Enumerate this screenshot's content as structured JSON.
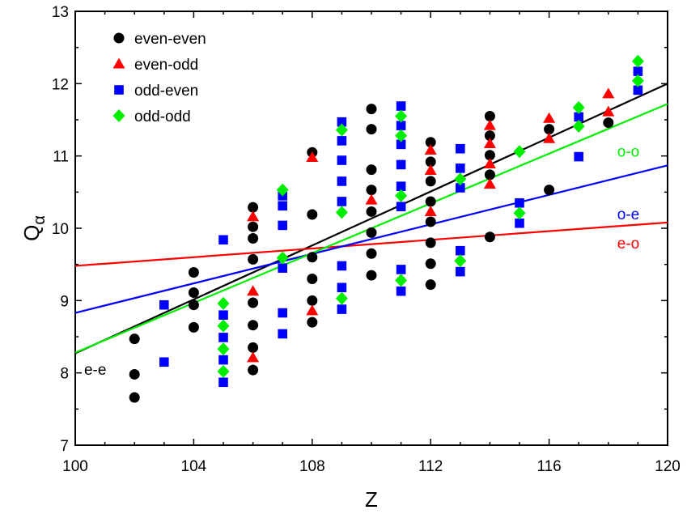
{
  "chart_data": {
    "type": "scatter",
    "title": "",
    "xlabel": "Z",
    "ylabel": "Q",
    "ylabel_sub": "α",
    "xlim": [
      100,
      120
    ],
    "ylim": [
      7,
      13
    ],
    "xticks": [
      100,
      104,
      108,
      112,
      116,
      120
    ],
    "yticks": [
      7,
      8,
      9,
      10,
      11,
      12,
      13
    ],
    "grid": false,
    "legend_position": "top-left",
    "series": [
      {
        "name": "even-even",
        "marker": "circle",
        "color": "#000000",
        "points": [
          [
            102,
            8.47
          ],
          [
            102,
            7.98
          ],
          [
            102,
            7.66
          ],
          [
            104,
            9.39
          ],
          [
            104,
            9.11
          ],
          [
            104,
            8.94
          ],
          [
            104,
            8.63
          ],
          [
            106,
            10.29
          ],
          [
            106,
            10.02
          ],
          [
            106,
            9.86
          ],
          [
            106,
            9.57
          ],
          [
            106,
            8.97
          ],
          [
            106,
            8.66
          ],
          [
            106,
            8.35
          ],
          [
            106,
            8.04
          ],
          [
            108,
            11.05
          ],
          [
            108,
            10.19
          ],
          [
            108,
            9.6
          ],
          [
            108,
            9.3
          ],
          [
            108,
            9.0
          ],
          [
            108,
            8.7
          ],
          [
            110,
            11.65
          ],
          [
            110,
            11.37
          ],
          [
            110,
            10.81
          ],
          [
            110,
            10.53
          ],
          [
            110,
            10.23
          ],
          [
            110,
            9.94
          ],
          [
            110,
            9.65
          ],
          [
            110,
            9.35
          ],
          [
            112,
            11.19
          ],
          [
            112,
            10.92
          ],
          [
            112,
            10.65
          ],
          [
            112,
            10.37
          ],
          [
            112,
            10.09
          ],
          [
            112,
            9.8
          ],
          [
            112,
            9.51
          ],
          [
            112,
            9.22
          ],
          [
            114,
            11.55
          ],
          [
            114,
            11.28
          ],
          [
            114,
            11.01
          ],
          [
            114,
            10.74
          ],
          [
            114,
            9.88
          ],
          [
            116,
            11.37
          ],
          [
            116,
            10.53
          ],
          [
            118,
            11.46
          ]
        ]
      },
      {
        "name": "even-odd",
        "marker": "triangle",
        "color": "#ff0000",
        "points": [
          [
            106,
            10.16
          ],
          [
            106,
            9.13
          ],
          [
            106,
            8.21
          ],
          [
            108,
            10.98
          ],
          [
            108,
            8.86
          ],
          [
            110,
            10.39
          ],
          [
            112,
            11.08
          ],
          [
            112,
            10.8
          ],
          [
            112,
            10.23
          ],
          [
            114,
            11.42
          ],
          [
            114,
            11.17
          ],
          [
            114,
            10.89
          ],
          [
            114,
            10.61
          ],
          [
            116,
            11.52
          ],
          [
            116,
            11.24
          ],
          [
            118,
            11.86
          ],
          [
            118,
            11.61
          ]
        ]
      },
      {
        "name": "odd-even",
        "marker": "square",
        "color": "#0000ff",
        "points": [
          [
            103,
            8.94
          ],
          [
            103,
            8.15
          ],
          [
            105,
            9.84
          ],
          [
            105,
            8.8
          ],
          [
            105,
            8.49
          ],
          [
            105,
            8.18
          ],
          [
            105,
            7.87
          ],
          [
            107,
            10.45
          ],
          [
            107,
            10.31
          ],
          [
            107,
            10.04
          ],
          [
            107,
            9.45
          ],
          [
            107,
            8.83
          ],
          [
            107,
            8.54
          ],
          [
            109,
            11.47
          ],
          [
            109,
            11.21
          ],
          [
            109,
            10.94
          ],
          [
            109,
            10.65
          ],
          [
            109,
            10.37
          ],
          [
            109,
            9.48
          ],
          [
            109,
            9.18
          ],
          [
            109,
            8.88
          ],
          [
            111,
            11.69
          ],
          [
            111,
            11.42
          ],
          [
            111,
            11.16
          ],
          [
            111,
            10.88
          ],
          [
            111,
            10.58
          ],
          [
            111,
            10.3
          ],
          [
            111,
            9.43
          ],
          [
            111,
            9.13
          ],
          [
            113,
            11.1
          ],
          [
            113,
            10.83
          ],
          [
            113,
            10.56
          ],
          [
            113,
            9.69
          ],
          [
            113,
            9.4
          ],
          [
            115,
            10.35
          ],
          [
            115,
            10.07
          ],
          [
            117,
            11.54
          ],
          [
            117,
            10.99
          ],
          [
            119,
            12.17
          ],
          [
            119,
            11.91
          ]
        ]
      },
      {
        "name": "odd-odd",
        "marker": "diamond",
        "color": "#00ee00",
        "points": [
          [
            105,
            8.96
          ],
          [
            105,
            8.65
          ],
          [
            105,
            8.33
          ],
          [
            105,
            8.02
          ],
          [
            107,
            10.53
          ],
          [
            107,
            9.59
          ],
          [
            109,
            11.36
          ],
          [
            109,
            10.22
          ],
          [
            109,
            9.03
          ],
          [
            111,
            11.55
          ],
          [
            111,
            11.28
          ],
          [
            111,
            10.45
          ],
          [
            111,
            9.28
          ],
          [
            113,
            10.68
          ],
          [
            113,
            9.55
          ],
          [
            115,
            11.06
          ],
          [
            115,
            10.21
          ],
          [
            117,
            11.67
          ],
          [
            117,
            11.41
          ],
          [
            119,
            12.31
          ],
          [
            119,
            12.04
          ]
        ]
      }
    ],
    "fits": [
      {
        "label": "e-e",
        "color": "#000000",
        "from": [
          100,
          8.27
        ],
        "to": [
          120,
          12.0
        ],
        "label_at": [
          100.3,
          8.05
        ]
      },
      {
        "label": "e-o",
        "color": "#ff0000",
        "from": [
          100,
          9.48
        ],
        "to": [
          120,
          10.08
        ],
        "label_at": [
          118.3,
          9.8
        ]
      },
      {
        "label": "o-e",
        "color": "#0000ff",
        "from": [
          100,
          8.83
        ],
        "to": [
          120,
          10.87
        ],
        "label_at": [
          118.3,
          10.2
        ]
      },
      {
        "label": "o-o",
        "color": "#00ee00",
        "from": [
          100,
          8.28
        ],
        "to": [
          120,
          11.72
        ],
        "label_at": [
          118.3,
          11.07
        ]
      }
    ]
  }
}
